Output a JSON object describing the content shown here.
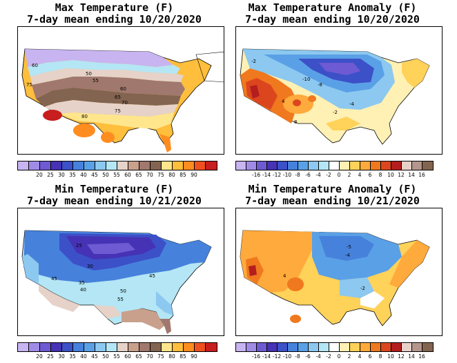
{
  "panels": [
    {
      "title_line1": "Max Temperature (F)",
      "title_line2": "7-day mean ending 10/20/2020",
      "colorbar": {
        "colors": [
          "#c8b4f0",
          "#a08ce6",
          "#6e5ad2",
          "#4632b4",
          "#3c50c8",
          "#4682dc",
          "#5aa0e6",
          "#8cc8f0",
          "#b4e6f5",
          "#e6d2c8",
          "#c8a08c",
          "#a0786e",
          "#826450",
          "#ffe68c",
          "#ffbe3c",
          "#ff8c1e",
          "#f0501e",
          "#c81e1e"
        ],
        "labels": [
          "20",
          "25",
          "30",
          "35",
          "40",
          "45",
          "50",
          "55",
          "60",
          "65",
          "70",
          "75",
          "80",
          "85",
          "90"
        ]
      },
      "contour_labels": [
        "60",
        "50",
        "55",
        "60",
        "65",
        "70",
        "75",
        "75",
        "80"
      ]
    },
    {
      "title_line1": "Max Temperature Anomaly (F)",
      "title_line2": "7-day mean ending 10/20/2020",
      "colorbar": {
        "colors": [
          "#c8b4f0",
          "#a08ce6",
          "#6e5ad2",
          "#4632b4",
          "#3c50c8",
          "#4682dc",
          "#5aa0e6",
          "#8cc8f0",
          "#b4e6f5",
          "#ffffff",
          "#fff0b4",
          "#ffd25a",
          "#ffaa3c",
          "#f0781e",
          "#dc461e",
          "#b41e1e",
          "#e6d2c8",
          "#b4968c",
          "#826450"
        ],
        "labels": [
          "-16",
          "-14",
          "-12",
          "-10",
          "-8",
          "-6",
          "-4",
          "-2",
          "0",
          "2",
          "4",
          "6",
          "8",
          "10",
          "12",
          "14",
          "16"
        ]
      },
      "contour_labels": [
        "-2",
        "-10",
        "-8",
        "-4",
        "-2",
        "4",
        "8"
      ]
    },
    {
      "title_line1": "Min Temperature (F)",
      "title_line2": "7-day mean ending 10/21/2020",
      "colorbar": {
        "colors": [
          "#c8b4f0",
          "#a08ce6",
          "#6e5ad2",
          "#4632b4",
          "#3c50c8",
          "#4682dc",
          "#5aa0e6",
          "#8cc8f0",
          "#b4e6f5",
          "#e6d2c8",
          "#c8a08c",
          "#a0786e",
          "#826450",
          "#ffe68c",
          "#ffbe3c",
          "#ff8c1e",
          "#f0501e",
          "#c81e1e"
        ],
        "labels": [
          "20",
          "25",
          "30",
          "35",
          "40",
          "45",
          "50",
          "55",
          "60",
          "65",
          "70",
          "75",
          "80",
          "85",
          "90"
        ]
      },
      "contour_labels": [
        "25",
        "30",
        "35",
        "40",
        "45",
        "45",
        "50",
        "55"
      ]
    },
    {
      "title_line1": "Min Temperature Anomaly (F)",
      "title_line2": "7-day mean ending 10/21/2020",
      "colorbar": {
        "colors": [
          "#c8b4f0",
          "#a08ce6",
          "#6e5ad2",
          "#4632b4",
          "#3c50c8",
          "#4682dc",
          "#5aa0e6",
          "#8cc8f0",
          "#b4e6f5",
          "#ffffff",
          "#fff0b4",
          "#ffd25a",
          "#ffaa3c",
          "#f0781e",
          "#dc461e",
          "#b41e1e",
          "#e6d2c8",
          "#b4968c",
          "#826450"
        ],
        "labels": [
          "-16",
          "-14",
          "-12",
          "-10",
          "-8",
          "-6",
          "-4",
          "-2",
          "0",
          "2",
          "4",
          "6",
          "8",
          "10",
          "12",
          "14",
          "16"
        ]
      },
      "contour_labels": [
        "-5",
        "-4",
        "-2",
        "4"
      ]
    }
  ]
}
